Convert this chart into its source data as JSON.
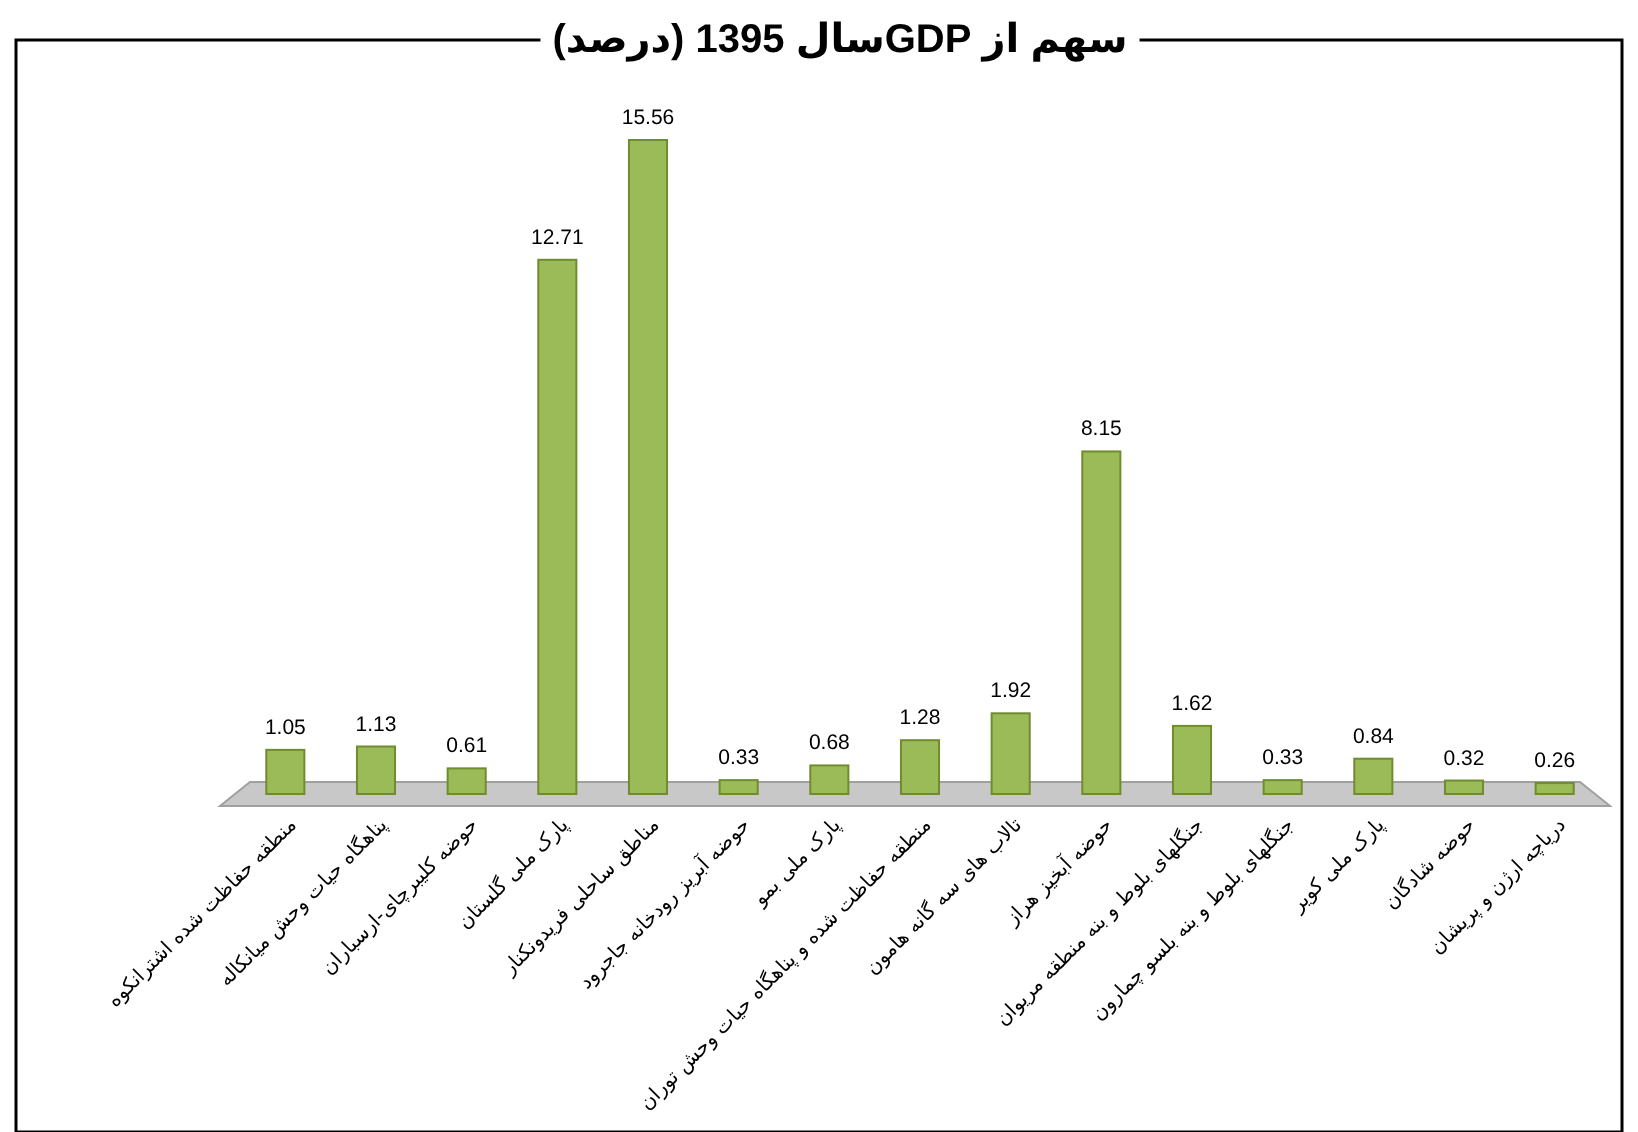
{
  "chart_data": {
    "type": "bar",
    "title": "سهم از GDPسال 1395 (درصد)",
    "categories": [
      "منطقه حفاظت شده اشترانکوه",
      "پناهگاه حیات وحش میانکاله",
      "حوضه کلیبرچای-ارسباران",
      "پارک ملی گلستان",
      "مناطق ساحلی فریدونکنار",
      "حوضه آبریز رودخانه جاجرود",
      "پارک ملی بمو",
      "منطقه حفاظت شده و پناهگاه حیات وحش توران",
      "تالاب های سه گانه هامون",
      "حوضه آبخیز هراز",
      "جنگلهای بلوط و بنه منطقه مریوان",
      "جنگلهای بلوط و بنه بلسو چمارون",
      "پارک ملی کویر",
      "حوضه شادگان",
      "دریاچه ارژن و پریشان"
    ],
    "values": [
      1.05,
      1.13,
      0.61,
      12.71,
      15.56,
      0.33,
      0.68,
      1.28,
      1.92,
      8.15,
      1.62,
      0.33,
      0.84,
      0.32,
      0.26
    ],
    "color": "#9bbb59",
    "data_labels": true
  }
}
